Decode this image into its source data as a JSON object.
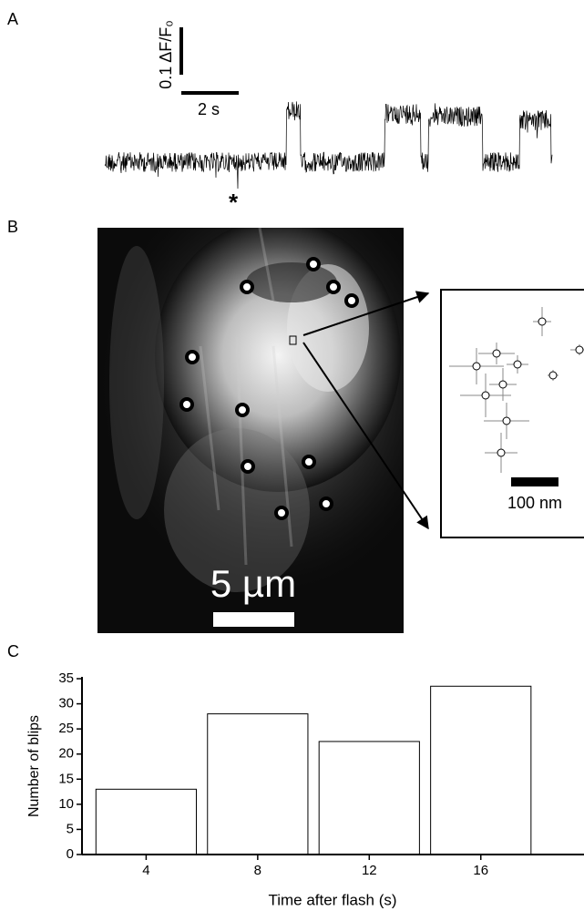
{
  "panels": {
    "a": {
      "label": "A",
      "scale_y": "0.1 ΔF/F₀",
      "scale_x": "2 s",
      "marker": "*"
    },
    "b": {
      "label": "B",
      "scale": "5 µm",
      "inset_scale": "100 nm"
    },
    "c": {
      "label": "C"
    }
  },
  "chart_data": {
    "type": "bar",
    "x": [
      4,
      8,
      12,
      16
    ],
    "values": [
      13,
      28,
      22.5,
      33.5
    ],
    "color": "#ffffff",
    "xlim": [
      1.7,
      19.7
    ],
    "xticks": [
      4,
      8,
      12,
      16
    ],
    "ylim": [
      0,
      35
    ],
    "yticks": [
      0,
      5,
      10,
      15,
      20,
      25,
      30,
      35
    ],
    "xlabel": "Time after flash (s)",
    "ylabel": "Number of blips",
    "grid": false
  }
}
